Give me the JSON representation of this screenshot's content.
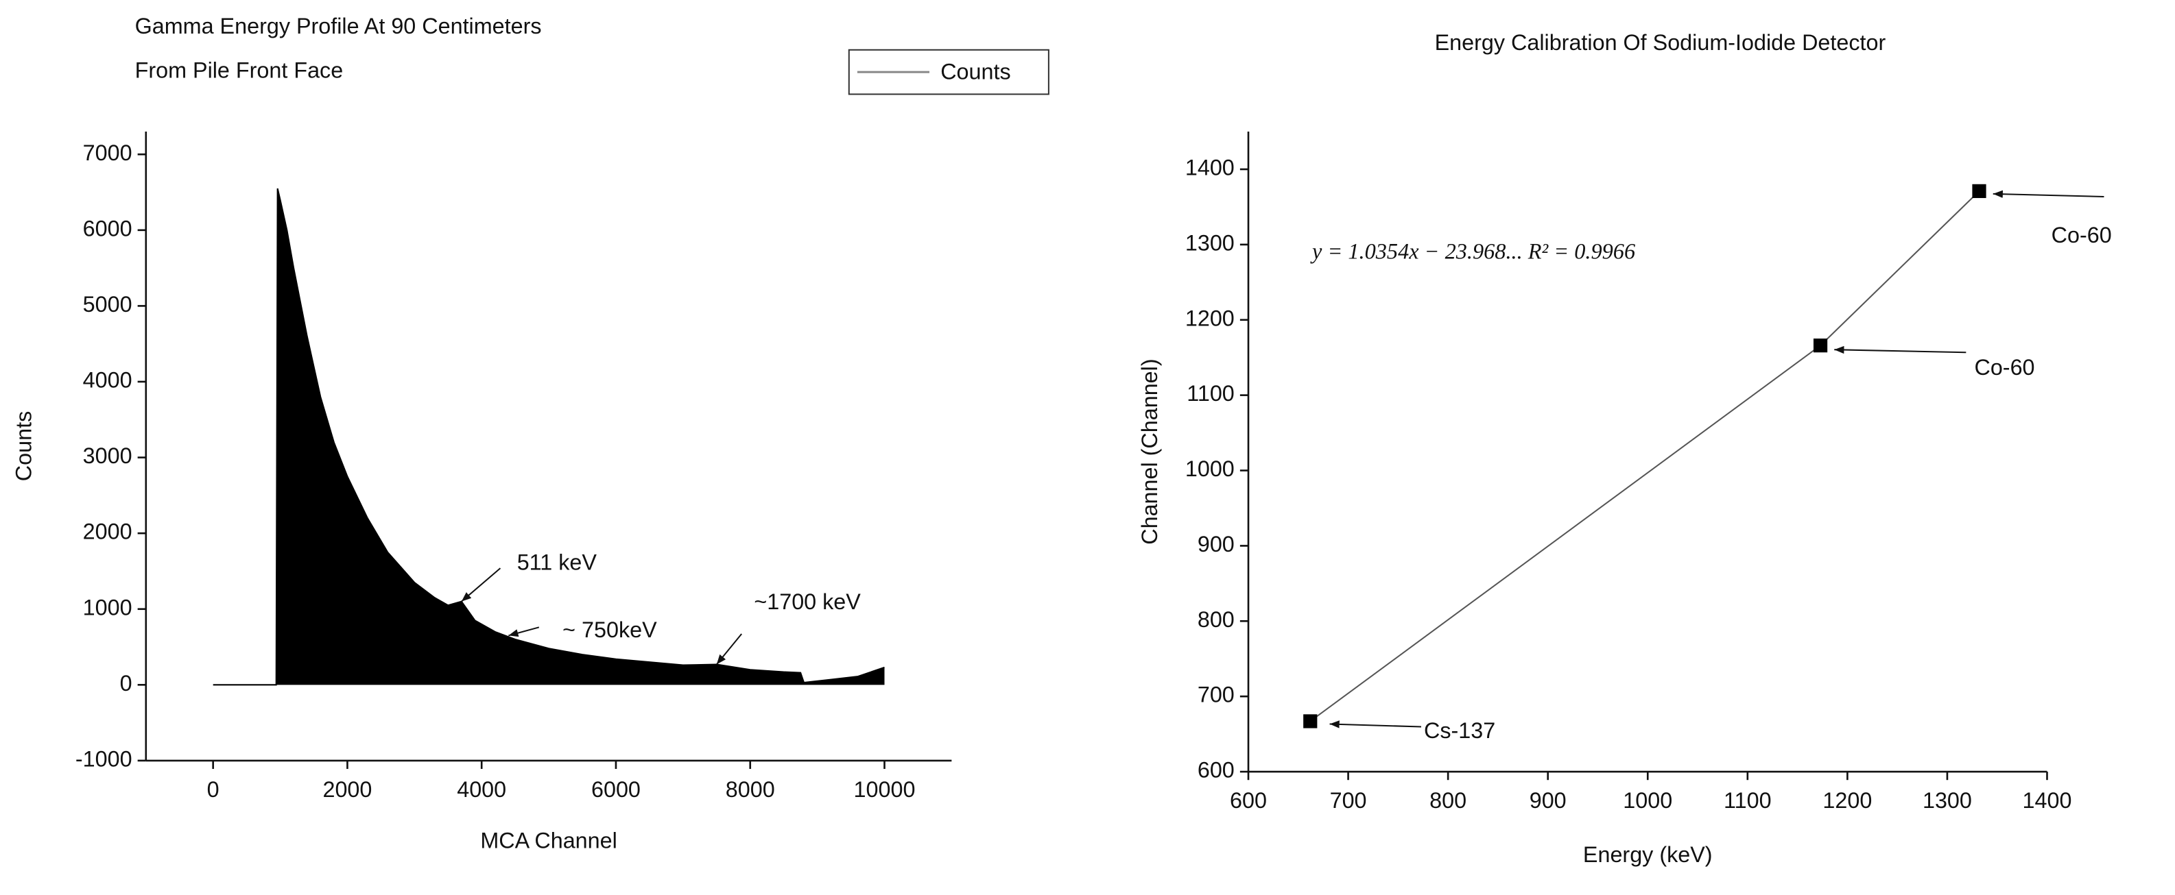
{
  "chart_data": [
    {
      "type": "area",
      "title_lines": [
        "Gamma Energy Profile At 90 Centimeters",
        "From Pile Front Face"
      ],
      "x_label": "MCA Channel",
      "y_label": "Counts",
      "x": [
        0,
        940,
        960,
        1000,
        1100,
        1200,
        1400,
        1600,
        1800,
        2000,
        2300,
        2600,
        3000,
        3300,
        3500,
        3700,
        3900,
        4200,
        4500,
        5000,
        5500,
        6000,
        6500,
        7000,
        7500,
        8000,
        8500,
        8750,
        8800,
        9200,
        9600,
        10000
      ],
      "series": [
        {
          "name": "Counts",
          "color": "#000000",
          "values": [
            0,
            0,
            6550,
            6400,
            6000,
            5500,
            4600,
            3800,
            3200,
            2750,
            2200,
            1750,
            1350,
            1150,
            1050,
            1100,
            850,
            700,
            600,
            480,
            400,
            340,
            300,
            260,
            270,
            200,
            170,
            160,
            30,
            70,
            110,
            230
          ]
        }
      ],
      "xlim": [
        -1000,
        11000
      ],
      "xticks": [
        0,
        2000,
        4000,
        6000,
        8000,
        10000
      ],
      "ylim": [
        -1000,
        7300
      ],
      "yticks": [
        -1000,
        0,
        1000,
        2000,
        3000,
        4000,
        5000,
        6000,
        7000
      ],
      "legend": "top-right",
      "annotations": [
        {
          "text": "511 keV",
          "x": 3700,
          "y": 1100
        },
        {
          "text": "~ 750keV",
          "x": 4400,
          "y": 650
        },
        {
          "text": "~1700 keV",
          "x": 7500,
          "y": 270
        }
      ]
    },
    {
      "type": "scatter-line",
      "title": "Energy Calibration Of Sodium-Iodide Detector",
      "x_label": "Energy (keV)",
      "y_label": "Channel (Channel)",
      "x": [
        662,
        1173,
        1332
      ],
      "series": [
        {
          "name": "Channel",
          "color": "#000000",
          "values": [
            667,
            1166,
            1371
          ]
        }
      ],
      "xlim": [
        600,
        1400
      ],
      "xticks": [
        600,
        700,
        800,
        900,
        1000,
        1100,
        1200,
        1300,
        1400
      ],
      "ylim": [
        600,
        1450
      ],
      "yticks": [
        600,
        700,
        800,
        900,
        1000,
        1100,
        1200,
        1300,
        1400
      ],
      "equation": "y = 1.0354x − 23.968... R² = 0.9966",
      "annotations": [
        "Cs-137",
        "Co-60",
        "Co-60"
      ]
    }
  ]
}
